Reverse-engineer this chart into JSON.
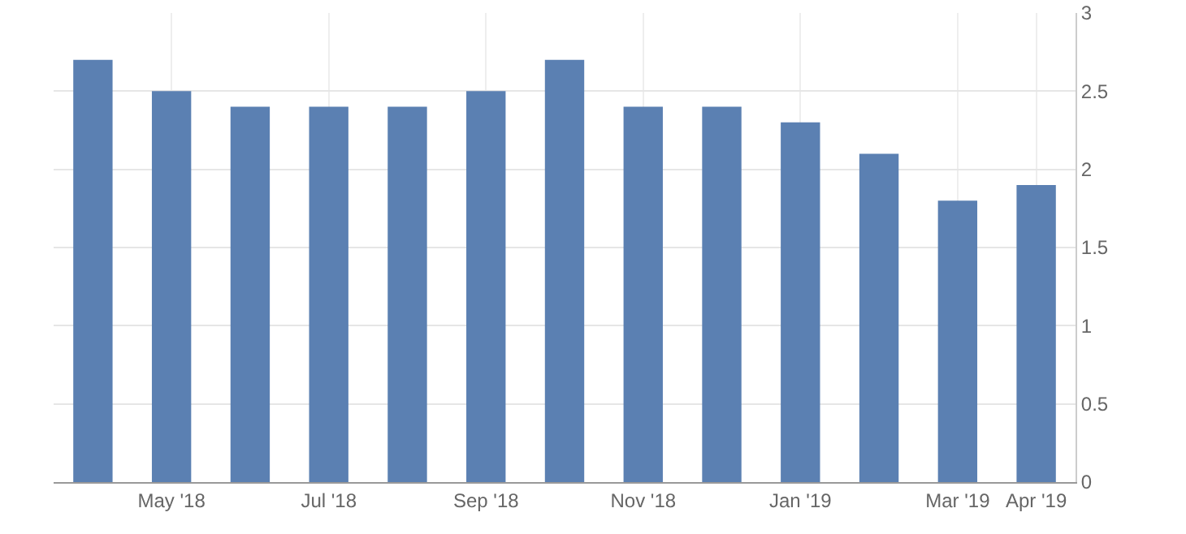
{
  "chart_data": {
    "type": "bar",
    "categories": [
      null,
      "May '18",
      null,
      "Jul '18",
      null,
      "Sep '18",
      null,
      "Nov '18",
      null,
      "Jan '19",
      null,
      "Mar '19",
      "Apr '19"
    ],
    "values": [
      2.7,
      2.5,
      2.4,
      2.4,
      2.4,
      2.5,
      2.7,
      2.4,
      2.4,
      2.3,
      2.1,
      1.8,
      1.9
    ],
    "color": "#5b80b2",
    "ylim": [
      0,
      3
    ],
    "yticks": [
      0,
      0.5,
      1,
      1.5,
      2,
      2.5,
      3
    ],
    "grid": true
  }
}
